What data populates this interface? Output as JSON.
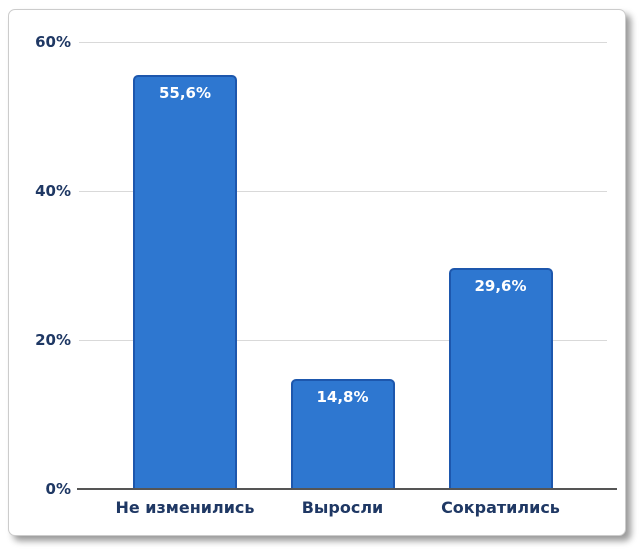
{
  "chart_data": {
    "type": "bar",
    "title": "",
    "xlabel": "",
    "ylabel": "",
    "categories": [
      "Не изменились",
      "Выросли",
      "Сократились"
    ],
    "values": [
      55.6,
      14.8,
      29.6
    ],
    "data_labels": [
      "55,6%",
      "14,8%",
      "29,6%"
    ],
    "y_ticks": [
      {
        "value": 0,
        "label": "0%"
      },
      {
        "value": 20,
        "label": "20%"
      },
      {
        "value": 40,
        "label": "40%"
      },
      {
        "value": 60,
        "label": "60%"
      }
    ],
    "ylim": [
      0,
      60
    ],
    "grid": true,
    "legend": false,
    "colors": {
      "bar_fill": "#2e77d0",
      "bar_border": "#1d57ad",
      "axis_text": "#1f3864",
      "data_label_text": "#ffffff",
      "gridline": "#d9d9d9",
      "axis_line": "#555555",
      "card_background": "#ffffff",
      "card_border": "#cccccc"
    }
  }
}
